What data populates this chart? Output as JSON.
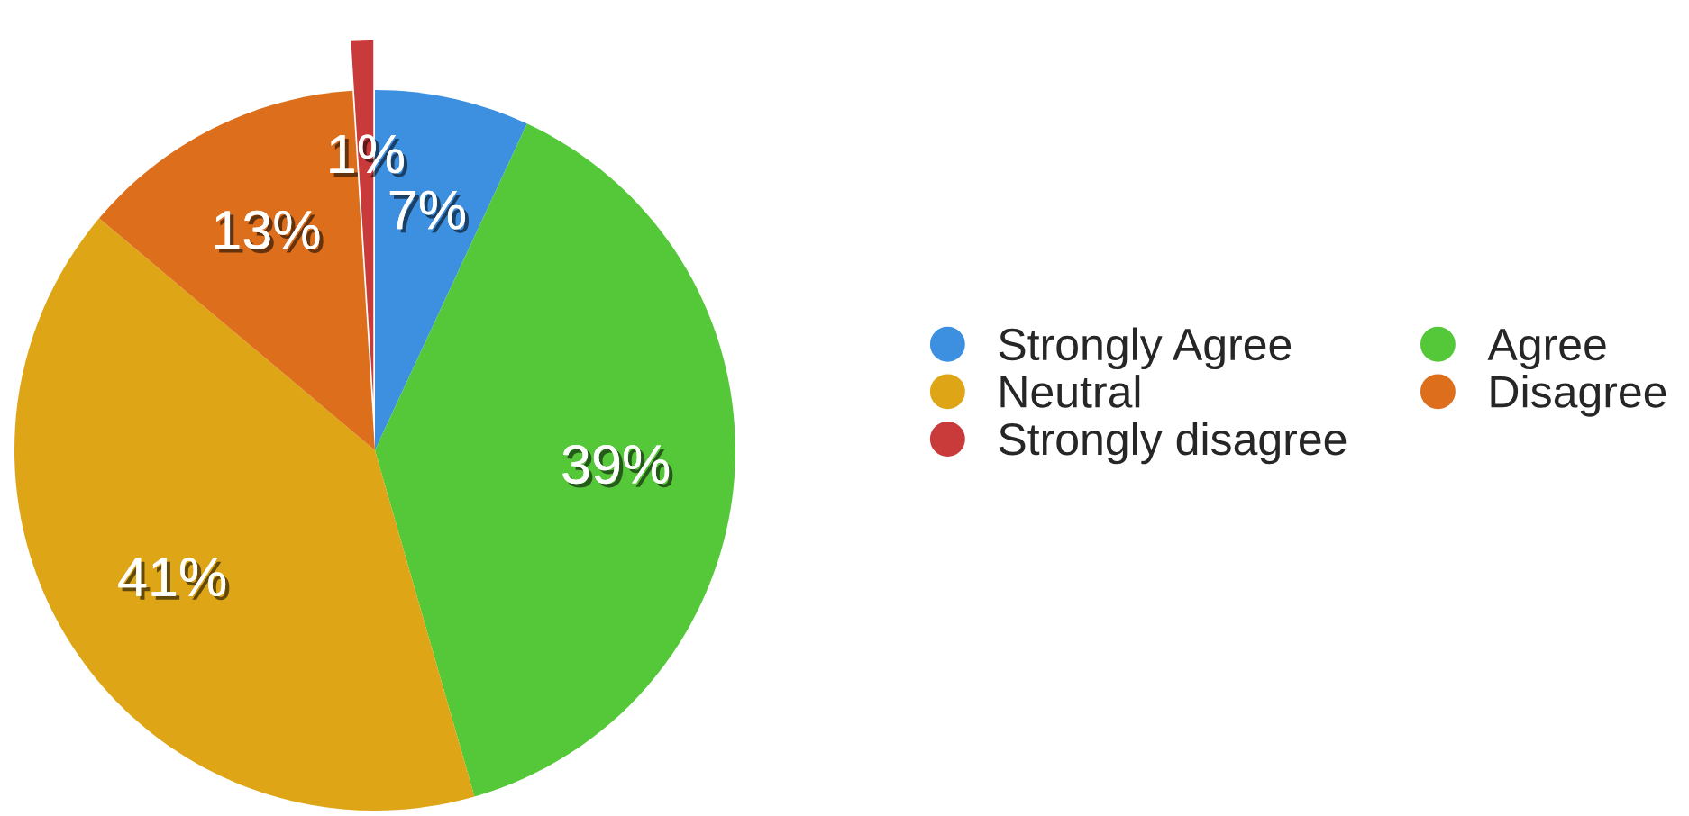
{
  "chart_data": {
    "type": "pie",
    "categories": [
      "Strongly Agree",
      "Agree",
      "Neutral",
      "Disagree",
      "Strongly disagree"
    ],
    "values": [
      7,
      39,
      41,
      13,
      1
    ],
    "colors": [
      "#3d8fe0",
      "#55c83a",
      "#dea516",
      "#dd6f1c",
      "#c93a3a"
    ],
    "value_labels": [
      "7%",
      "39%",
      "41%",
      "13%",
      "1%"
    ],
    "legend": "right"
  }
}
